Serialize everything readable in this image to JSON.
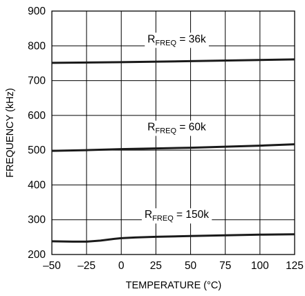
{
  "chart_data": {
    "type": "line",
    "xlabel": "TEMPERATURE (°C)",
    "ylabel": "FREQUENCY (kHz)",
    "xlim": [
      -50,
      125
    ],
    "ylim": [
      200,
      900
    ],
    "x_ticks": [
      -50,
      -25,
      0,
      25,
      50,
      75,
      100,
      125
    ],
    "x_tick_labels": [
      "–50",
      "–25",
      "0",
      "25",
      "50",
      "75",
      "100",
      "125"
    ],
    "y_ticks": [
      200,
      300,
      400,
      500,
      600,
      700,
      800,
      900
    ],
    "y_tick_labels": [
      "200",
      "300",
      "400",
      "500",
      "600",
      "700",
      "800",
      "900"
    ],
    "grid": true,
    "line_color": "#1a1a1a",
    "series": [
      {
        "label": {
          "prefix": "R",
          "sub": "FREQ",
          "suffix": " = 36k"
        },
        "label_at": {
          "x": 40,
          "y": 810
        },
        "x": [
          -50,
          0,
          50,
          125
        ],
        "y": [
          751,
          753,
          756,
          761
        ]
      },
      {
        "label": {
          "prefix": "R",
          "sub": "FREQ",
          "suffix": " = 60k"
        },
        "label_at": {
          "x": 40,
          "y": 557
        },
        "x": [
          -50,
          -25,
          0,
          25,
          50,
          75,
          100,
          125
        ],
        "y": [
          498,
          500,
          503,
          505,
          507,
          510,
          513,
          517
        ]
      },
      {
        "label": {
          "prefix": "R",
          "sub": "FREQ",
          "suffix": " = 150k"
        },
        "label_at": {
          "x": 40,
          "y": 305
        },
        "x": [
          -50,
          -35,
          -25,
          -15,
          -5,
          0,
          10,
          25,
          50,
          75,
          100,
          125
        ],
        "y": [
          238,
          237,
          237,
          240,
          245,
          247,
          249,
          251,
          253,
          255,
          257,
          258
        ]
      }
    ]
  }
}
